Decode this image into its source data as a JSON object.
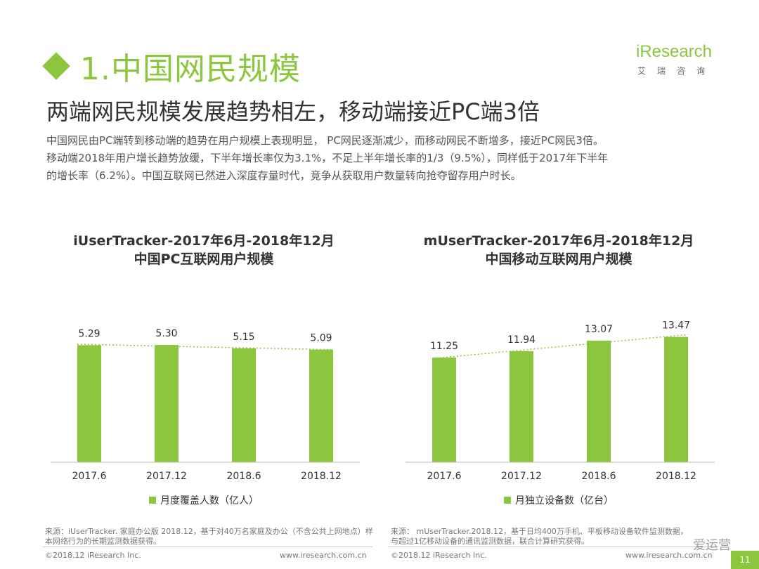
{
  "section": {
    "title": "1.中国网民规模"
  },
  "logo": {
    "main": "iResearch",
    "sub": "艾瑞咨询"
  },
  "headline": "两端网民规模发展趋势相左，移动端接近PC端3倍",
  "intro": [
    "中国网民由PC端转到移动端的趋势在用户规模上表现明显， PC网民逐渐减少，而移动网民不断增多，接近PC网民3倍。",
    "移动端2018年用户增长趋势放缓，下半年增长率仅为3.1%，不足上半年增长率的1/3（9.5%），同样低于2017年下半年",
    "的增长率（6.2%）。中国互联网已然进入深度存量时代，竞争从获取用户数量转向抢夺留存用户时长。"
  ],
  "colors": {
    "accent": "#8cc63f",
    "trend": "#8cc63f"
  },
  "chart_data": [
    {
      "type": "bar",
      "title": "iUserTracker-2017年6月-2018年12月",
      "subtitle": "中国PC互联网用户规模",
      "categories": [
        "2017.6",
        "2017.12",
        "2018.6",
        "2018.12"
      ],
      "series": [
        {
          "name": "月度覆盖人数（亿人）",
          "values": [
            5.29,
            5.3,
            5.15,
            5.09
          ]
        }
      ],
      "value_labels": [
        "5.29",
        "5.30",
        "5.15",
        "5.09"
      ],
      "trendline": true,
      "ylim": [
        0,
        6.35
      ],
      "grid": false
    },
    {
      "type": "bar",
      "title": "mUserTracker-2017年6月-2018年12月",
      "subtitle": "中国移动互联网用户规模",
      "categories": [
        "2017.6",
        "2017.12",
        "2018.6",
        "2018.12"
      ],
      "series": [
        {
          "name": "月独立设备数（亿台）",
          "values": [
            11.25,
            11.94,
            13.07,
            13.47
          ]
        }
      ],
      "value_labels": [
        "11.25",
        "11.94",
        "13.07",
        "13.47"
      ],
      "trendline": true,
      "ylim": [
        0,
        15.1
      ],
      "grid": false
    }
  ],
  "sources": {
    "left": "来源：iUserTracker. 家庭办公版 2018.12，基于对40万名家庭及办公（不含公共上网地点）样本网络行为的长期监测数据获得。",
    "right": "来源： mUserTracker.2018.12，基于日均400万手机、平板移动设备软件监测数据，与超过1亿移动设备的通讯监测数据，联合计算研究获得。"
  },
  "footer": {
    "copyright": "©2018.12 iResearch Inc.",
    "website": "www.iresearch.com.cn",
    "page": "11",
    "watermark": "爱运营"
  }
}
